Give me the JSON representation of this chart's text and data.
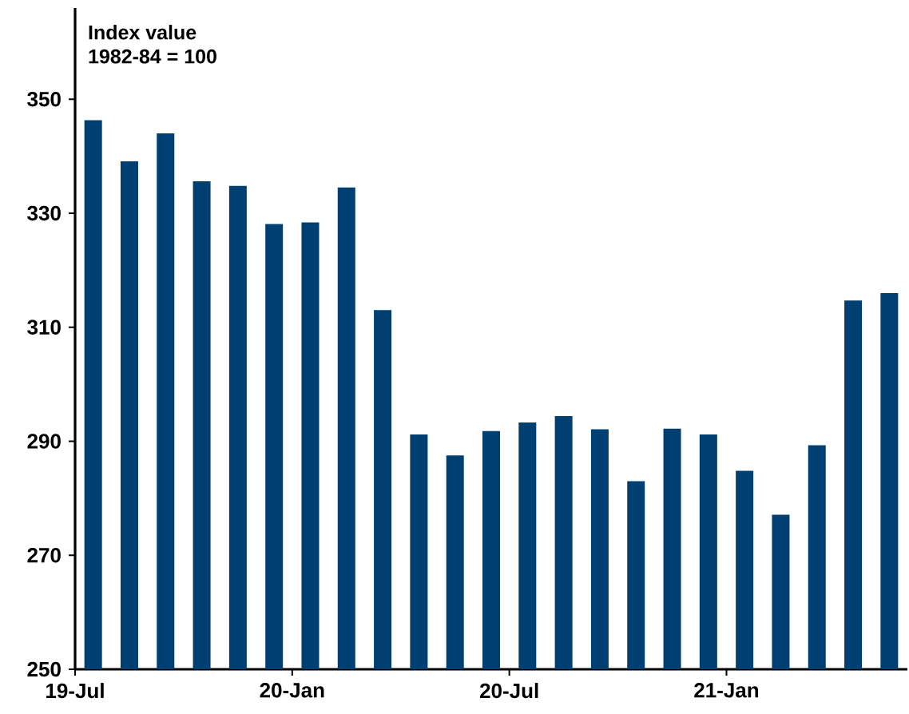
{
  "chart_data": {
    "type": "bar",
    "title": "Index value",
    "subtitle": "1982-84 = 100",
    "categories": [
      "19-Jul",
      null,
      null,
      null,
      null,
      null,
      "20-Jan",
      null,
      null,
      null,
      null,
      null,
      "20-Jul",
      null,
      null,
      null,
      null,
      null,
      "21-Jan",
      null,
      null,
      null,
      null
    ],
    "values": [
      346.3,
      339.1,
      344.0,
      335.6,
      334.8,
      328.1,
      328.4,
      334.5,
      313.0,
      291.2,
      287.5,
      291.8,
      293.3,
      294.4,
      292.1,
      283.0,
      292.2,
      291.2,
      284.8,
      277.1,
      289.3,
      314.7,
      316.0
    ],
    "color": "#003f72",
    "ylim": [
      250,
      366
    ],
    "yticks": [
      250,
      270,
      290,
      310,
      330,
      350
    ],
    "grid": false
  }
}
